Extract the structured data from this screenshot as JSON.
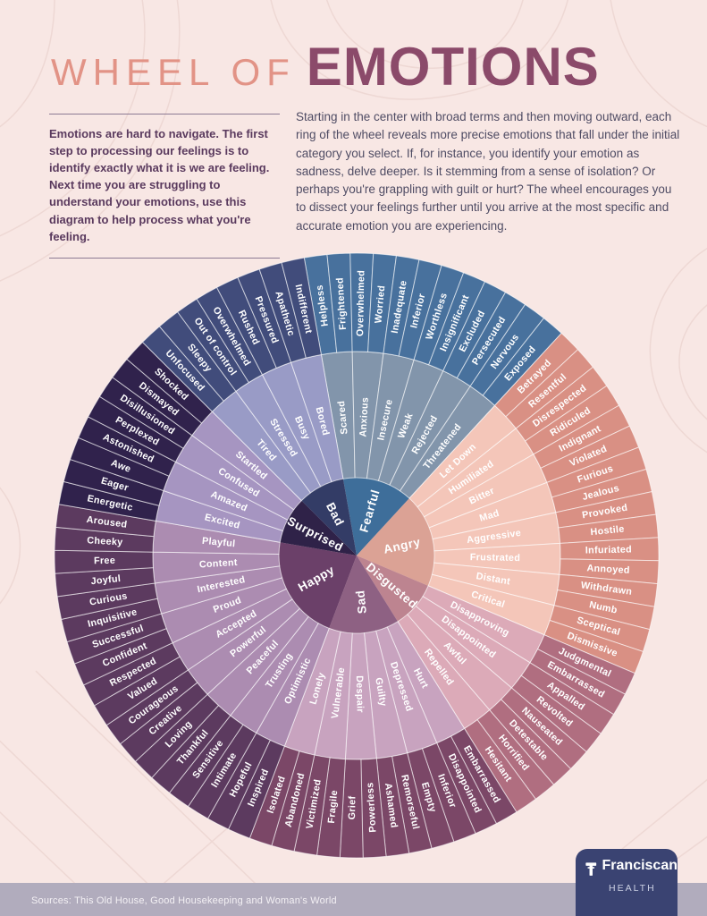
{
  "header": {
    "title_light": "WHEEL OF",
    "title_bold": "EMOTIONS"
  },
  "intro": {
    "left_text": "Emotions are hard to navigate. The first step to processing our feelings is to identify exactly what it is we are feeling. Next time you are struggling to understand your emotions, use this diagram to help process what you're feeling.",
    "right_text": "Starting in the center with broad terms and then moving outward, each ring of the wheel reveals more precise emotions that fall under the initial category you select. If, for instance, you identify your emotion as sadness, delve deeper. Is it stemming from a sense of isolation? Or perhaps you're grappling with guilt or hurt? The wheel encourages you to dissect your feelings further until you arrive at the most specific and accurate emotion you are experiencing.",
    "divider_color": "#8c7a93"
  },
  "colors": {
    "background": "#f8e7e4",
    "pattern_line": "#eed8d4",
    "title_light": "#e29386",
    "title_bold": "#8b4a6a",
    "intro_left_text": "#5a3a5e",
    "intro_right_text": "#4f4c64",
    "sources_bar": "#b1acbd",
    "logo_navy": "#3a4372",
    "label_text": "#ffffff"
  },
  "wheel": {
    "start_angle": -10,
    "sections": [
      {
        "name": "Fearful",
        "colors": {
          "core": "#3e6e9a",
          "middle": "#8295ab",
          "outer": "#48719d"
        },
        "middle": [
          "Scared",
          "Anxious",
          "Insecure",
          "Weak",
          "Rejected",
          "Threatened"
        ],
        "outer": [
          "Helpless",
          "Frightened",
          "Overwhelmed",
          "Worried",
          "Inadequate",
          "Inferior",
          "Worthless",
          "Insignificant",
          "Excluded",
          "Persecuted",
          "Nervous",
          "Exposed"
        ]
      },
      {
        "name": "Angry",
        "colors": {
          "core": "#dba295",
          "middle": "#f4c6b9",
          "outer": "#d99084"
        },
        "middle": [
          "Let Down",
          "Humiliated",
          "Bitter",
          "Mad",
          "Aggressive",
          "Frustrated",
          "Distant",
          "Critical"
        ],
        "outer": [
          "Betrayed",
          "Resentful",
          "Disrespected",
          "Ridiculed",
          "Indignant",
          "Violated",
          "Furious",
          "Jealous",
          "Provoked",
          "Hostile",
          "Infuriated",
          "Annoyed",
          "Withdrawn",
          "Numb",
          "Sceptical",
          "Dismissive"
        ]
      },
      {
        "name": "Disgusted",
        "colors": {
          "core": "#bd8490",
          "middle": "#dcaab8",
          "outer": "#b06e80"
        },
        "middle": [
          "Disapproving",
          "Disappointed",
          "Awful",
          "Repelled"
        ],
        "outer": [
          "Judgmental",
          "Embarrassed",
          "Appalled",
          "Revolted",
          "Nauseated",
          "Detestable",
          "Horrified",
          "Hesitant"
        ]
      },
      {
        "name": "Sad",
        "colors": {
          "core": "#8e6183",
          "middle": "#c8a3bf",
          "outer": "#7b4767"
        },
        "middle": [
          "Hurt",
          "Depressed",
          "Guilty",
          "Despair",
          "Vulnerable",
          "Lonely"
        ],
        "outer": [
          "Embarrassed",
          "Disappointed",
          "Inferior",
          "Empty",
          "Remorseful",
          "Ashamed",
          "Powerless",
          "Grief",
          "Fragile",
          "Victimized",
          "Abandoned",
          "Isolated"
        ]
      },
      {
        "name": "Happy",
        "colors": {
          "core": "#6b4069",
          "middle": "#ac8cb1",
          "outer": "#5c3a5f"
        },
        "middle": [
          "Optimistic",
          "Trusting",
          "Peaceful",
          "Powerful",
          "Accepted",
          "Proud",
          "Interested",
          "Content",
          "Playful"
        ],
        "outer": [
          "Inspired",
          "Hopeful",
          "Intimate",
          "Sensitive",
          "Thankful",
          "Loving",
          "Creative",
          "Courageous",
          "Valued",
          "Respected",
          "Confident",
          "Successful",
          "Inquisitive",
          "Curious",
          "Joyful",
          "Free",
          "Cheeky",
          "Aroused"
        ]
      },
      {
        "name": "Surprised",
        "colors": {
          "core": "#2f2248",
          "middle": "#a695c1",
          "outer": "#30224c"
        },
        "middle": [
          "Excited",
          "Amazed",
          "Confused",
          "Startled"
        ],
        "outer": [
          "Energetic",
          "Eager",
          "Awe",
          "Astonished",
          "Perplexed",
          "Disillusioned",
          "Dismayed",
          "Shocked"
        ]
      },
      {
        "name": "Bad",
        "colors": {
          "core": "#333c66",
          "middle": "#999bc6",
          "outer": "#414c7b"
        },
        "middle": [
          "Tired",
          "Stressed",
          "Busy",
          "Bored"
        ],
        "outer": [
          "Unfocused",
          "Sleepy",
          "Out of control",
          "Overwhelmed",
          "Rushed",
          "Pressured",
          "Apathetic",
          "Indifferent"
        ]
      }
    ]
  },
  "footer": {
    "sources": "Sources: This Old House, Good Housekeeping and Woman's World",
    "logo_name": "Franciscan",
    "logo_sub": "HEALTH"
  }
}
